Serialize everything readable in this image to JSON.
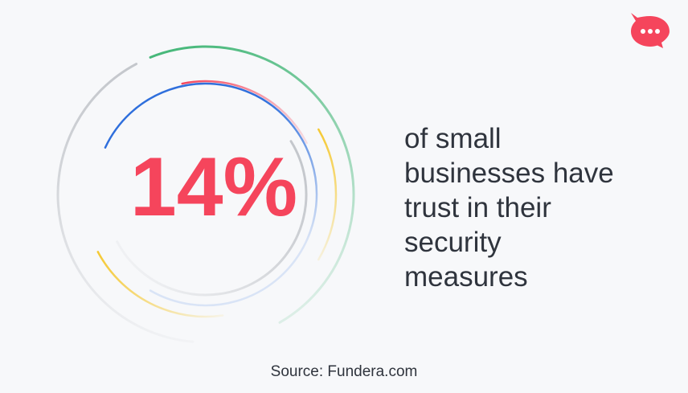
{
  "stat": "14%",
  "description": {
    "lines": [
      "of small",
      "businesses have",
      "trust in their",
      "security",
      "measures"
    ]
  },
  "source": "Source: Fundera.com"
}
